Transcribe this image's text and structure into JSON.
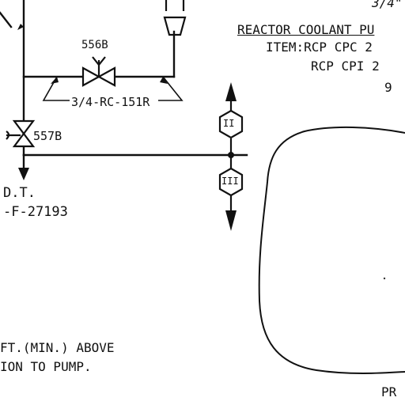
{
  "valves": {
    "v556b": "556B",
    "v557b": "557B"
  },
  "pipe_line_label": "3/4-RC-151R",
  "drain": {
    "label": "D.T.",
    "reference": "-F-27193"
  },
  "note": {
    "line1": "FT.(MIN.) ABOVE",
    "line2": "ION TO PUMP."
  },
  "title_block": {
    "size": "3/4\"",
    "title": "REACTOR COOLANT PU",
    "item1": "ITEM:RCP CPC 2",
    "item2": "RCP CPI 2",
    "item3": "9"
  },
  "connectors": {
    "upper": "II",
    "lower": "III"
  },
  "page_fragment": "PR"
}
